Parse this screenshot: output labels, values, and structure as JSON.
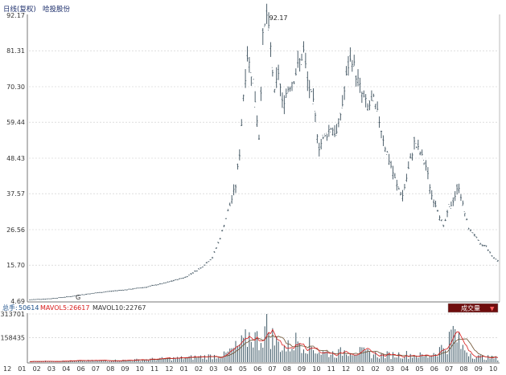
{
  "header": {
    "title": "日线(复权)",
    "stock": "哈投股份"
  },
  "colors": {
    "price": "#3b4f5c",
    "grid": "#c8c8c8",
    "vol_bar": "#3c5866",
    "ma5": "#d81b1b",
    "ma10": "#6e5030",
    "button_bg": "#6e0d0d",
    "button_text": "#ffffff",
    "header_text": "#1b2d6b",
    "total_text": "#1b4f8a"
  },
  "volume_panel": {
    "total_label": "总手:",
    "total_value": "50614",
    "ma5_label": "MAVOL5:",
    "ma5_value": "26617",
    "ma10_label": "MAVOL10:",
    "ma10_value": "22767",
    "button_label": "成交量",
    "button_arrow": "▼"
  },
  "chart_data": {
    "type": "candlestick",
    "title": "",
    "price_axis": {
      "ticks": [
        "92.17",
        "81.31",
        "70.30",
        "59.44",
        "48.43",
        "37.57",
        "26.56",
        "15.70",
        "4.69"
      ],
      "ylim": [
        4.69,
        92.17
      ]
    },
    "peak_annotation": "92.17",
    "low_annotation": "G",
    "volume_axis": {
      "ticks": [
        "313701",
        "158435"
      ],
      "ylim": [
        0,
        313701
      ]
    },
    "x_ticks": [
      "12",
      "01",
      "02",
      "03",
      "04",
      "06",
      "07",
      "08",
      "09",
      "10",
      "11",
      "12",
      "01",
      "02",
      "03",
      "04",
      "05",
      "06",
      "07",
      "08",
      "09",
      "10",
      "11",
      "12",
      "01",
      "02",
      "03",
      "04",
      "05",
      "06",
      "07",
      "08",
      "09",
      "10"
    ],
    "price_path_keypoints": [
      [
        0,
        5.1
      ],
      [
        10,
        5.4
      ],
      [
        20,
        6.0
      ],
      [
        30,
        6.9
      ],
      [
        40,
        7.6
      ],
      [
        50,
        8.2
      ],
      [
        60,
        9.0
      ],
      [
        70,
        10.3
      ],
      [
        80,
        12.0
      ],
      [
        88,
        14.8
      ],
      [
        94,
        18.0
      ],
      [
        98,
        24.0
      ],
      [
        102,
        32.0
      ],
      [
        106,
        40.0
      ],
      [
        108,
        50.0
      ],
      [
        110,
        68.0
      ],
      [
        112,
        80.0
      ],
      [
        115,
        72.0
      ],
      [
        118,
        55.0
      ],
      [
        120,
        85.0
      ],
      [
        122,
        92.17
      ],
      [
        124,
        82.0
      ],
      [
        126,
        68.0
      ],
      [
        128,
        75.0
      ],
      [
        130,
        65.0
      ],
      [
        133,
        70.0
      ],
      [
        136,
        73.0
      ],
      [
        139,
        78.0
      ],
      [
        141,
        81.0
      ],
      [
        143,
        72.0
      ],
      [
        146,
        65.0
      ],
      [
        149,
        52.0
      ],
      [
        152,
        55.0
      ],
      [
        155,
        58.0
      ],
      [
        158,
        56.0
      ],
      [
        161,
        65.0
      ],
      [
        164,
        77.0
      ],
      [
        166,
        79.0
      ],
      [
        168,
        74.0
      ],
      [
        171,
        68.0
      ],
      [
        174,
        64.0
      ],
      [
        177,
        66.0
      ],
      [
        180,
        60.0
      ],
      [
        183,
        52.0
      ],
      [
        186,
        46.0
      ],
      [
        189,
        40.0
      ],
      [
        192,
        37.0
      ],
      [
        195,
        45.0
      ],
      [
        198,
        53.0
      ],
      [
        201,
        50.0
      ],
      [
        204,
        46.0
      ],
      [
        207,
        37.0
      ],
      [
        210,
        33.0
      ],
      [
        213,
        27.5
      ],
      [
        216,
        33.0
      ],
      [
        219,
        37.0
      ],
      [
        221,
        40.0
      ],
      [
        223,
        34.0
      ],
      [
        226,
        27.0
      ],
      [
        229,
        25.0
      ],
      [
        232,
        22.0
      ],
      [
        235,
        21.5
      ],
      [
        238,
        18.5
      ],
      [
        241,
        17.0
      ]
    ],
    "volume_spike_keypoints": [
      [
        0,
        0.02
      ],
      [
        50,
        0.05
      ],
      [
        65,
        0.08
      ],
      [
        80,
        0.11
      ],
      [
        100,
        0.18
      ],
      [
        110,
        0.5
      ],
      [
        114,
        0.72
      ],
      [
        118,
        0.55
      ],
      [
        122,
        0.92
      ],
      [
        126,
        0.55
      ],
      [
        132,
        0.35
      ],
      [
        138,
        0.58
      ],
      [
        142,
        0.48
      ],
      [
        150,
        0.25
      ],
      [
        158,
        0.22
      ],
      [
        164,
        0.32
      ],
      [
        168,
        0.28
      ],
      [
        180,
        0.18
      ],
      [
        195,
        0.2
      ],
      [
        205,
        0.15
      ],
      [
        215,
        0.45
      ],
      [
        218,
        0.82
      ],
      [
        222,
        0.4
      ],
      [
        230,
        0.14
      ],
      [
        241,
        0.1
      ]
    ]
  }
}
